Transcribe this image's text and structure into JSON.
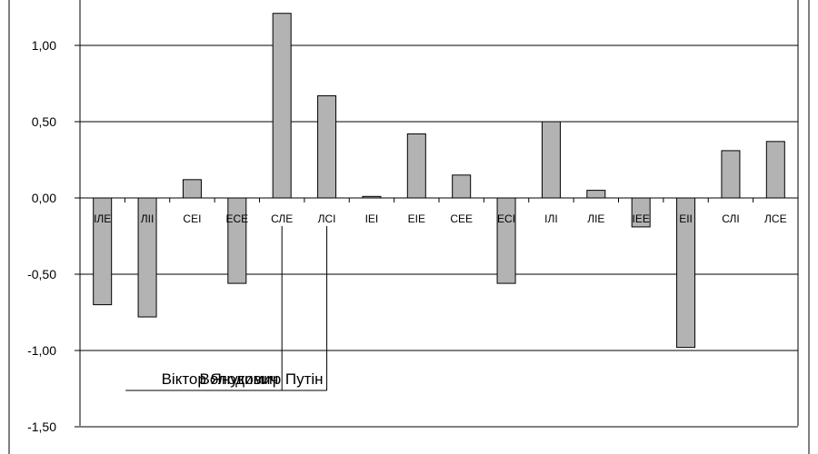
{
  "chart_data": {
    "type": "bar",
    "title": "",
    "xlabel": "",
    "ylabel": "",
    "ylim": [
      -1.5,
      1.25
    ],
    "yticks": [
      1.0,
      0.5,
      0.0,
      -0.5,
      -1.0,
      -1.5
    ],
    "ytick_labels": [
      "1,00",
      "0,50",
      "0,00",
      "-0,50",
      "-1,00",
      "-1,50"
    ],
    "grid": true,
    "categories": [
      "ІЛЕ",
      "ЛІІ",
      "СЕІ",
      "ЕСЕ",
      "СЛЕ",
      "ЛСІ",
      "ІЕІ",
      "ЕІЕ",
      "СЕЕ",
      "ЕСІ",
      "ІЛІ",
      "ЛІЕ",
      "ІЕЕ",
      "ЕІІ",
      "СЛІ",
      "ЛСЕ"
    ],
    "values": [
      -0.7,
      -0.78,
      0.12,
      -0.56,
      1.21,
      0.67,
      0.01,
      0.42,
      0.15,
      -0.56,
      0.5,
      0.05,
      -0.19,
      -0.98,
      0.31,
      0.37
    ],
    "bar_color": "#b3b3b3",
    "annotations": [
      {
        "text": "Віктор Янукович",
        "category": "СЛЕ"
      },
      {
        "text": "Володимир Путін",
        "category": "ЛСІ"
      }
    ]
  }
}
